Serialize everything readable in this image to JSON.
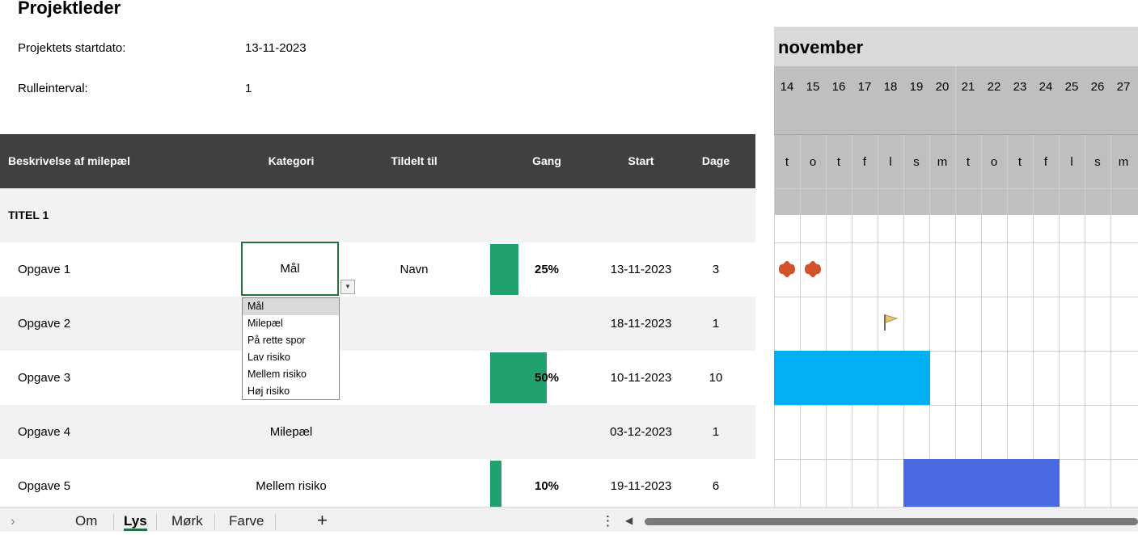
{
  "header": {
    "title": "Projektleder",
    "start_label": "Projektets startdato:",
    "start_value": "13-11-2023",
    "interval_label": "Rulleinterval:",
    "interval_value": "1"
  },
  "table": {
    "columns": {
      "desc": "Beskrivelse af milepæl",
      "category": "Kategori",
      "assigned": "Tildelt til",
      "progress": "Gang",
      "start": "Start",
      "days": "Dage"
    },
    "section_title": "TITEL 1",
    "rows": [
      {
        "desc": "Opgave 1",
        "category": "Mål",
        "assigned": "Navn",
        "progress": "25%",
        "progress_value": 25,
        "start": "13-11-2023",
        "days": "3"
      },
      {
        "desc": "Opgave 2",
        "category": "",
        "assigned": "",
        "progress": "",
        "progress_value": 0,
        "start": "18-11-2023",
        "days": "1"
      },
      {
        "desc": "Opgave 3",
        "category": "",
        "assigned": "",
        "progress": "50%",
        "progress_value": 50,
        "start": "10-11-2023",
        "days": "10"
      },
      {
        "desc": "Opgave 4",
        "category": "Milepæl",
        "assigned": "",
        "progress": "",
        "progress_value": 0,
        "start": "03-12-2023",
        "days": "1"
      },
      {
        "desc": "Opgave 5",
        "category": "Mellem risiko",
        "assigned": "",
        "progress": "10%",
        "progress_value": 10,
        "start": "19-11-2023",
        "days": "6"
      }
    ]
  },
  "dropdown": {
    "options": [
      "Mål",
      "Milepæl",
      "På rette spor",
      "Lav risiko",
      "Mellem risiko",
      "Høj risiko"
    ],
    "selected": "Mål"
  },
  "gantt": {
    "month": "november",
    "days": [
      "14",
      "15",
      "16",
      "17",
      "18",
      "19",
      "20",
      "21",
      "22",
      "23",
      "24",
      "25",
      "26",
      "27"
    ],
    "weekdays": [
      "t",
      "o",
      "t",
      "f",
      "l",
      "s",
      "m",
      "t",
      "o",
      "t",
      "f",
      "l",
      "s",
      "m"
    ],
    "colors": {
      "goal": "#d2522c",
      "bar_light": "#00b0f0",
      "bar_blue": "#4a6ae2",
      "progress": "#21a16e"
    }
  },
  "tabs": {
    "items": [
      "Om",
      "Lys",
      "Mørk",
      "Farve"
    ],
    "active": "Lys",
    "add": "+",
    "nav_prev": "›",
    "menu": "⋮",
    "scroll_left": "◀"
  }
}
